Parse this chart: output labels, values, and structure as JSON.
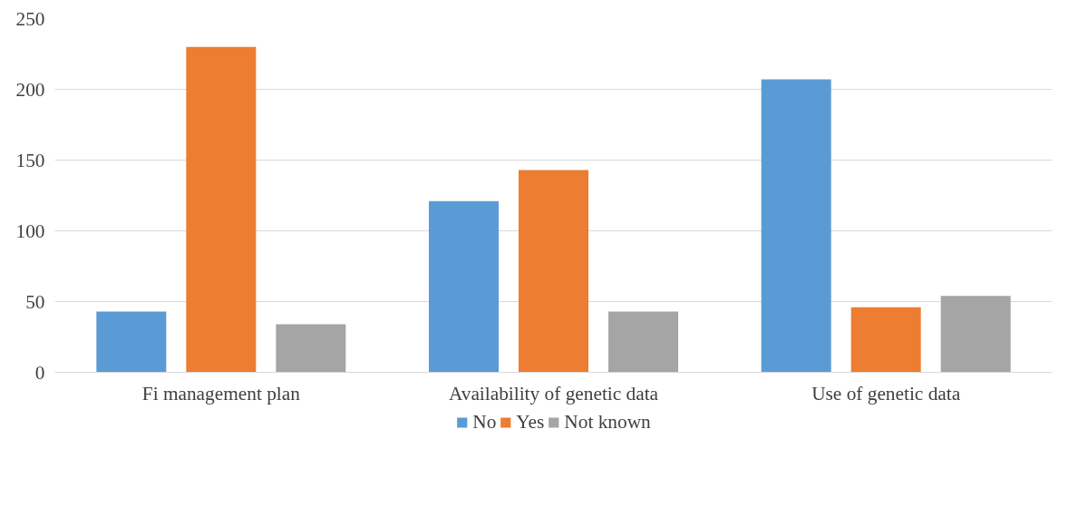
{
  "chart_data": {
    "type": "bar",
    "categories": [
      "Fi management plan",
      "Availability of genetic data",
      "Use of genetic data"
    ],
    "series": [
      {
        "name": "No",
        "color": "#5b9bd5",
        "values": [
          43,
          121,
          207
        ]
      },
      {
        "name": "Yes",
        "color": "#ed7d31",
        "values": [
          230,
          143,
          46
        ]
      },
      {
        "name": "Not known",
        "color": "#a5a5a5",
        "values": [
          34,
          43,
          54
        ]
      }
    ],
    "ylim": [
      0,
      250
    ],
    "yticks": [
      0,
      50,
      100,
      150,
      200,
      250
    ],
    "grid": "y",
    "legend": "bottom"
  }
}
